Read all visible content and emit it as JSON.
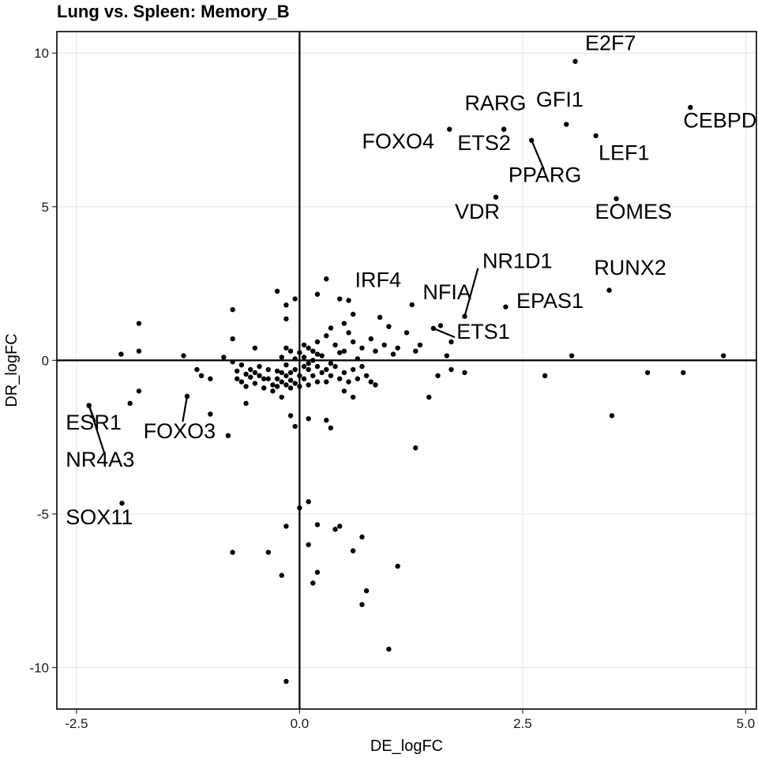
{
  "chart_data": {
    "type": "scatter",
    "title": "Lung vs. Spleen: Memory_B",
    "xlabel": "DE_logFC",
    "ylabel": "DR_logFC",
    "xlim": [
      -2.72,
      5.12
    ],
    "ylim": [
      -11.35,
      10.7
    ],
    "xticks": [
      -2.5,
      0.0,
      2.5,
      5.0
    ],
    "xtick_labels": [
      "-2.5",
      "0.0",
      "2.5",
      "5.0"
    ],
    "yticks": [
      -10,
      -5,
      0,
      5,
      10
    ],
    "ytick_labels": [
      "-10",
      "-5",
      "0",
      "5",
      "10"
    ],
    "grid": true,
    "reference_lines": {
      "x": 0,
      "y": 0
    },
    "labeled_points": [
      {
        "label": "E2F7",
        "x": 3.09,
        "y": 9.73
      },
      {
        "label": "CEBPD",
        "x": 4.38,
        "y": 8.23
      },
      {
        "label": "GFI1",
        "x": 2.99,
        "y": 7.68
      },
      {
        "label": "LEF1",
        "x": 3.32,
        "y": 7.31
      },
      {
        "label": "RARG",
        "x": 2.29,
        "y": 7.52
      },
      {
        "label": "FOXO4",
        "x": 1.68,
        "y": 7.52
      },
      {
        "label": "ETS2",
        "x": 2.29,
        "y": 7.52
      },
      {
        "label": "PPARG",
        "x": 2.6,
        "y": 7.16
      },
      {
        "label": "VDR",
        "x": 2.2,
        "y": 5.31
      },
      {
        "label": "EOMES",
        "x": 3.55,
        "y": 5.26
      },
      {
        "label": "RUNX2",
        "x": 3.47,
        "y": 2.28
      },
      {
        "label": "NR1D1",
        "x": 1.85,
        "y": 1.43
      },
      {
        "label": "IRF4",
        "x": 1.26,
        "y": 1.81
      },
      {
        "label": "NFIA",
        "x": 1.58,
        "y": 1.13
      },
      {
        "label": "EPAS1",
        "x": 2.31,
        "y": 1.74
      },
      {
        "label": "ETS1",
        "x": 1.5,
        "y": 1.04
      },
      {
        "label": "ESR1",
        "x": -2.36,
        "y": -1.47
      },
      {
        "label": "NR4A3",
        "x": -2.36,
        "y": -1.47
      },
      {
        "label": "FOXO3",
        "x": -1.26,
        "y": -1.17
      },
      {
        "label": "SOX11",
        "x": -1.99,
        "y": -4.65
      }
    ],
    "points": [
      [
        -2.0,
        0.2
      ],
      [
        -1.8,
        1.2
      ],
      [
        -1.8,
        0.3
      ],
      [
        -1.8,
        -1.0
      ],
      [
        -1.9,
        -1.4
      ],
      [
        -1.3,
        0.15
      ],
      [
        -1.15,
        -0.3
      ],
      [
        -1.1,
        -0.5
      ],
      [
        -1.0,
        -0.6
      ],
      [
        -1.0,
        -1.75
      ],
      [
        -0.85,
        0.1
      ],
      [
        -0.8,
        -2.45
      ],
      [
        -0.75,
        1.65
      ],
      [
        -0.75,
        0.7
      ],
      [
        -0.75,
        -0.05
      ],
      [
        -0.7,
        -0.35
      ],
      [
        -0.7,
        -0.6
      ],
      [
        -0.65,
        -0.15
      ],
      [
        -0.65,
        -0.7
      ],
      [
        -0.6,
        -0.45
      ],
      [
        -0.6,
        -0.85
      ],
      [
        -0.6,
        -1.4
      ],
      [
        -0.55,
        -0.3
      ],
      [
        -0.55,
        -0.55
      ],
      [
        -0.5,
        0.4
      ],
      [
        -0.5,
        -0.4
      ],
      [
        -0.5,
        -0.75
      ],
      [
        -0.45,
        -0.2
      ],
      [
        -0.45,
        -0.5
      ],
      [
        -0.4,
        -0.6
      ],
      [
        -0.4,
        -0.9
      ],
      [
        -0.35,
        -0.3
      ],
      [
        -0.35,
        -0.6
      ],
      [
        -0.3,
        -0.8
      ],
      [
        -0.3,
        -1.0
      ],
      [
        -0.25,
        -0.35
      ],
      [
        -0.25,
        -0.6
      ],
      [
        -0.25,
        -0.85
      ],
      [
        -0.2,
        0.1
      ],
      [
        -0.2,
        -0.4
      ],
      [
        -0.2,
        -0.7
      ],
      [
        -0.2,
        -1.2
      ],
      [
        -0.15,
        1.35
      ],
      [
        -0.15,
        0.4
      ],
      [
        -0.15,
        -0.15
      ],
      [
        -0.15,
        -0.5
      ],
      [
        -0.15,
        -0.8
      ],
      [
        -0.1,
        0.3
      ],
      [
        -0.1,
        -0.4
      ],
      [
        -0.1,
        -0.65
      ],
      [
        -0.1,
        -0.9
      ],
      [
        -0.05,
        0.05
      ],
      [
        -0.05,
        -0.3
      ],
      [
        -0.05,
        -0.75
      ],
      [
        -0.05,
        -2.15
      ],
      [
        0.0,
        0.25
      ],
      [
        0.0,
        -0.5
      ],
      [
        0.0,
        -0.85
      ],
      [
        0.05,
        0.5
      ],
      [
        0.05,
        0.1
      ],
      [
        0.05,
        -0.2
      ],
      [
        0.05,
        -0.6
      ],
      [
        0.1,
        0.4
      ],
      [
        0.1,
        -0.1
      ],
      [
        0.1,
        -0.3
      ],
      [
        0.1,
        -0.8
      ],
      [
        0.15,
        0.3
      ],
      [
        0.15,
        0.0
      ],
      [
        0.15,
        -0.5
      ],
      [
        0.2,
        0.6
      ],
      [
        0.2,
        0.2
      ],
      [
        0.2,
        -0.2
      ],
      [
        0.2,
        -0.7
      ],
      [
        0.25,
        0.15
      ],
      [
        0.25,
        -0.4
      ],
      [
        0.3,
        0.8
      ],
      [
        0.3,
        -0.3
      ],
      [
        0.3,
        -0.7
      ],
      [
        0.35,
        1.05
      ],
      [
        0.35,
        -0.1
      ],
      [
        0.35,
        -0.5
      ],
      [
        0.4,
        0.5
      ],
      [
        0.4,
        -0.2
      ],
      [
        0.45,
        0.25
      ],
      [
        0.45,
        -0.6
      ],
      [
        0.5,
        1.2
      ],
      [
        0.5,
        0.3
      ],
      [
        0.5,
        -0.4
      ],
      [
        0.55,
        0.9
      ],
      [
        0.55,
        -0.7
      ],
      [
        0.6,
        1.5
      ],
      [
        0.6,
        0.6
      ],
      [
        0.6,
        -0.3
      ],
      [
        0.65,
        0.05
      ],
      [
        0.65,
        -0.6
      ],
      [
        0.7,
        0.4
      ],
      [
        0.7,
        -0.2
      ],
      [
        0.75,
        -0.5
      ],
      [
        0.8,
        0.7
      ],
      [
        0.8,
        -0.7
      ],
      [
        0.85,
        0.3
      ],
      [
        0.85,
        -0.8
      ],
      [
        0.9,
        1.4
      ],
      [
        0.95,
        0.5
      ],
      [
        1.0,
        1.1
      ],
      [
        1.05,
        0.2
      ],
      [
        1.1,
        0.4
      ],
      [
        1.2,
        0.9
      ],
      [
        1.3,
        0.3
      ],
      [
        1.35,
        0.5
      ],
      [
        -0.25,
        2.25
      ],
      [
        -0.15,
        1.8
      ],
      [
        -0.05,
        2.0
      ],
      [
        0.2,
        2.15
      ],
      [
        0.3,
        2.65
      ],
      [
        0.45,
        2.0
      ],
      [
        0.55,
        1.95
      ],
      [
        0.1,
        -1.9
      ],
      [
        0.3,
        -1.95
      ],
      [
        0.35,
        -2.2
      ],
      [
        0.5,
        -1.0
      ],
      [
        0.6,
        -1.2
      ],
      [
        -0.1,
        -1.8
      ],
      [
        0.0,
        -4.8
      ],
      [
        0.1,
        -4.6
      ],
      [
        -0.15,
        -5.4
      ],
      [
        0.2,
        -5.35
      ],
      [
        0.4,
        -5.5
      ],
      [
        0.45,
        -5.4
      ],
      [
        0.7,
        -5.75
      ],
      [
        -0.75,
        -6.25
      ],
      [
        -0.35,
        -6.25
      ],
      [
        0.1,
        -6.0
      ],
      [
        0.6,
        -6.2
      ],
      [
        -0.2,
        -7.0
      ],
      [
        0.15,
        -7.25
      ],
      [
        0.2,
        -6.9
      ],
      [
        1.1,
        -6.7
      ],
      [
        0.75,
        -7.5
      ],
      [
        0.7,
        -7.95
      ],
      [
        1.0,
        -9.4
      ],
      [
        -0.15,
        -10.45
      ],
      [
        1.3,
        -2.85
      ],
      [
        1.45,
        -1.2
      ],
      [
        1.55,
        -0.5
      ],
      [
        1.7,
        -0.3
      ],
      [
        1.85,
        -0.4
      ],
      [
        1.7,
        0.6
      ],
      [
        1.65,
        0.15
      ],
      [
        3.05,
        0.15
      ],
      [
        2.75,
        -0.5
      ],
      [
        3.5,
        -1.8
      ],
      [
        3.9,
        -0.4
      ],
      [
        4.3,
        -0.4
      ],
      [
        4.75,
        0.15
      ]
    ],
    "label_text": [
      {
        "label": "E2F7",
        "x": 3.2,
        "y": 10.1
      },
      {
        "label": "CEBPD",
        "x": 4.3,
        "y": 7.58
      },
      {
        "label": "GFI1",
        "x": 2.65,
        "y": 8.26
      },
      {
        "label": "LEF1",
        "x": 3.35,
        "y": 6.52
      },
      {
        "label": "RARG",
        "x": 1.85,
        "y": 8.14
      },
      {
        "label": "FOXO4",
        "x": 0.7,
        "y": 6.9
      },
      {
        "label": "ETS2",
        "x": 1.77,
        "y": 6.85
      },
      {
        "label": "PPARG",
        "x": 2.34,
        "y": 5.81
      },
      {
        "label": "VDR",
        "x": 1.74,
        "y": 4.61
      },
      {
        "label": "EOMES",
        "x": 3.31,
        "y": 4.61
      },
      {
        "label": "RUNX2",
        "x": 3.3,
        "y": 2.79
      },
      {
        "label": "NR1D1",
        "x": 2.05,
        "y": 3.0
      },
      {
        "label": "IRF4",
        "x": 0.62,
        "y": 2.39
      },
      {
        "label": "NFIA",
        "x": 1.38,
        "y": 1.99
      },
      {
        "label": "EPAS1",
        "x": 2.43,
        "y": 1.71
      },
      {
        "label": "ETS1",
        "x": 1.76,
        "y": 0.7
      },
      {
        "label": "ESR1",
        "x": -2.62,
        "y": -2.25
      },
      {
        "label": "NR4A3",
        "x": -2.62,
        "y": -3.46
      },
      {
        "label": "FOXO3",
        "x": -1.75,
        "y": -2.53
      },
      {
        "label": "SOX11",
        "x": -2.62,
        "y": -5.33
      }
    ],
    "connectors": [
      {
        "label": "PPARG",
        "from": [
          2.6,
          7.16
        ],
        "to": [
          2.74,
          6.2
        ]
      },
      {
        "label": "NR1D1",
        "from": [
          1.85,
          1.43
        ],
        "to": [
          2.0,
          3.0
        ]
      },
      {
        "label": "ETS1",
        "from": [
          1.5,
          1.04
        ],
        "to": [
          1.74,
          0.75
        ]
      },
      {
        "label": "ESR1",
        "from": [
          -2.36,
          -1.47
        ],
        "to": [
          -2.29,
          -2.0
        ]
      },
      {
        "label": "NR4A3",
        "from": [
          -2.36,
          -1.47
        ],
        "to": [
          -2.19,
          -3.0
        ]
      },
      {
        "label": "FOXO3",
        "from": [
          -1.26,
          -1.17
        ],
        "to": [
          -1.31,
          -2.0
        ]
      }
    ]
  }
}
